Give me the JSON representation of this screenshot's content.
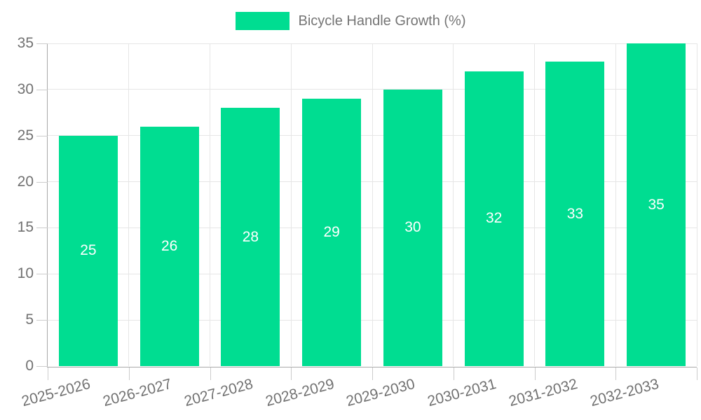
{
  "chart_data": {
    "type": "bar",
    "title": "",
    "legend_label": "Bicycle Handle Growth (%)",
    "legend_position": "top",
    "categories": [
      "2025-2026",
      "2026-2027",
      "2027-2028",
      "2028-2029",
      "2029-2030",
      "2030-2031",
      "2031-2032",
      "2032-2033"
    ],
    "values": [
      25,
      26,
      28,
      29,
      30,
      32,
      33,
      35
    ],
    "value_labels_shown": true,
    "xlabel": "",
    "ylabel": "",
    "ylim": [
      0,
      35
    ],
    "yticks": [
      0,
      5,
      10,
      15,
      20,
      25,
      30,
      35
    ],
    "grid": true,
    "x_label_rotation_deg": -15,
    "colors": {
      "bar": "#00dd91",
      "value_text": "#ffffff",
      "axis_text": "#717171",
      "legend_text": "#757575",
      "gridline": "#e6e6e6",
      "axis_line": "#a9a9a9",
      "tick_mark": "#cccccc",
      "background": "#ffffff"
    }
  }
}
